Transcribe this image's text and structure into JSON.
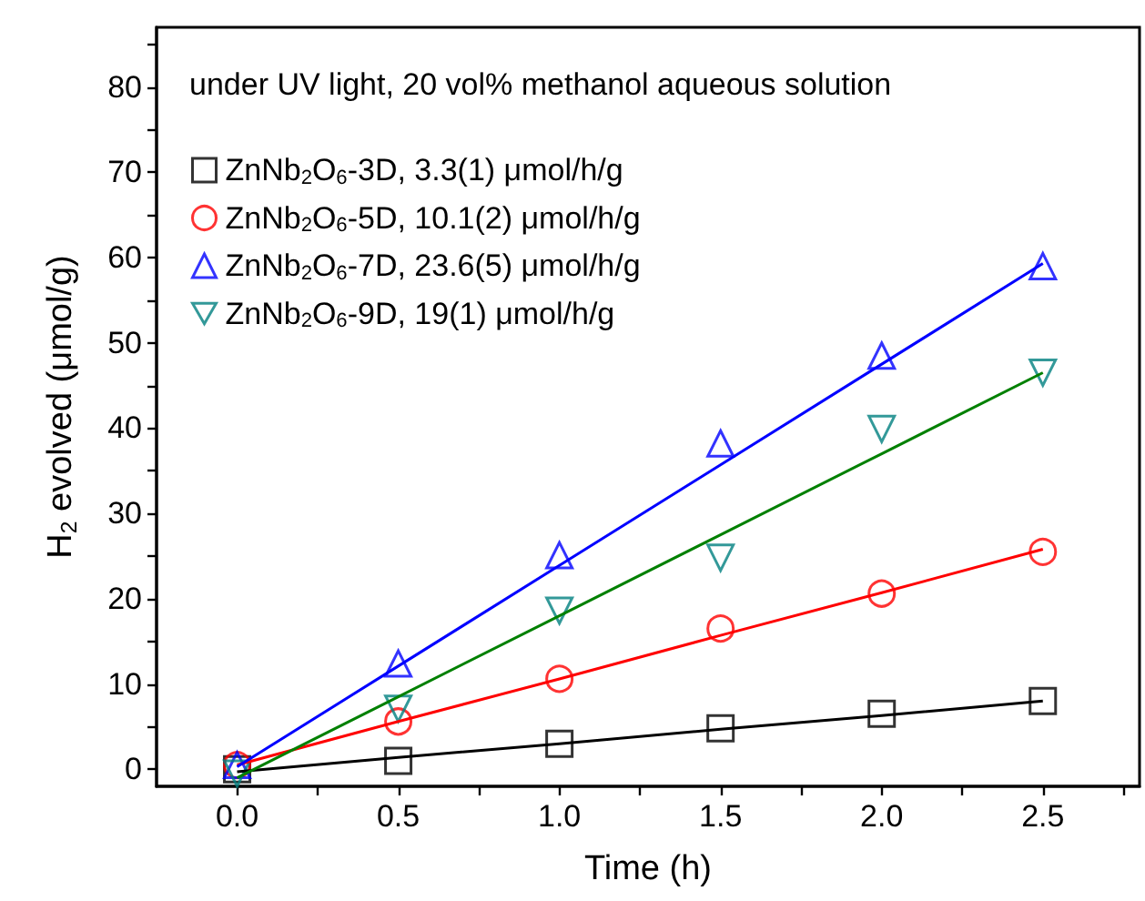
{
  "chart_data": {
    "type": "scatter",
    "xlabel": "Time (h)",
    "ylabel": "H$_{2}$ evolved (μmol/g)",
    "annotations": [
      "under UV light, 20 vol% methanol aqueous solution"
    ],
    "x": [
      0,
      0.5,
      1,
      1.5,
      2,
      2.5
    ],
    "series": [
      {
        "name": "ZnNb$_{2}$O$_{6}$-3D, 3.3(1) μmol/h/g",
        "color": "#000000",
        "marker": "square",
        "values": [
          0,
          1.0,
          3.0,
          4.8,
          6.5,
          8.0
        ]
      },
      {
        "name": "ZnNb$_{2}$O$_{6}$-5D, 10.1(2) μmol/h/g",
        "color": "#ff0000",
        "marker": "circle",
        "values": [
          0.5,
          5.6,
          10.6,
          16.5,
          20.6,
          25.5
        ]
      },
      {
        "name": "ZnNb$_{2}$O$_{6}$-7D, 23.6(5) μmol/h/g",
        "color": "#0000ff",
        "marker": "triangle",
        "values": [
          0.5,
          12.4,
          25.1,
          38.2,
          48.5,
          59
        ]
      },
      {
        "name": "ZnNb$_{2}$O$_{6}$-9D, 19(1) μmol/h/g",
        "color": "#008080",
        "marker": "triangle-down",
        "values": [
          -0.5,
          7.1,
          18.6,
          24.8,
          39.9,
          46.5
        ]
      },
      {
        "type": "line",
        "color": "#000000",
        "marker": "none",
        "values": [
          -0.3,
          1.4,
          3.0,
          4.7,
          6.3,
          8.0
        ]
      },
      {
        "type": "line",
        "color": "#ff0000",
        "marker": "none",
        "values": [
          0.5,
          5.6,
          10.6,
          15.7,
          20.7,
          25.8
        ]
      },
      {
        "type": "line",
        "color": "#0000ff",
        "marker": "none",
        "values": [
          0.3,
          12.1,
          23.9,
          35.7,
          47.5,
          59.3
        ]
      },
      {
        "type": "line",
        "color": "#008000",
        "marker": "none",
        "values": [
          -1,
          8.5,
          18,
          27.5,
          37,
          46.5
        ]
      }
    ],
    "xlim": [
      -0.25,
      2.8
    ],
    "xticks": [
      {
        "value": 0,
        "label": "0.0"
      },
      {
        "value": 0.25,
        "label": null
      },
      {
        "value": 0.5,
        "label": "0.5"
      },
      {
        "value": 0.75,
        "label": null
      },
      {
        "value": 1,
        "label": "1.0"
      },
      {
        "value": 1.25,
        "label": null
      },
      {
        "value": 1.5,
        "label": "1.5"
      },
      {
        "value": 1.75,
        "label": null
      },
      {
        "value": 2,
        "label": "2.0"
      },
      {
        "value": 2.25,
        "label": null
      },
      {
        "value": 2.5,
        "label": "2.5"
      },
      {
        "value": 2.75,
        "label": null
      }
    ],
    "ylim": [
      -2,
      87
    ],
    "yticks": [
      0,
      {
        "value": 5,
        "label": null
      },
      10,
      {
        "value": 15,
        "label": null
      },
      20,
      {
        "value": 25,
        "label": null
      },
      30,
      {
        "value": 35,
        "label": null
      },
      40,
      {
        "value": 45,
        "label": null
      },
      50,
      {
        "value": 55,
        "label": null
      },
      60,
      {
        "value": 65,
        "label": null
      },
      70,
      {
        "value": 75,
        "label": null
      },
      80,
      {
        "value": 85,
        "label": null
      }
    ],
    "grid": false,
    "legend": "top left"
  }
}
